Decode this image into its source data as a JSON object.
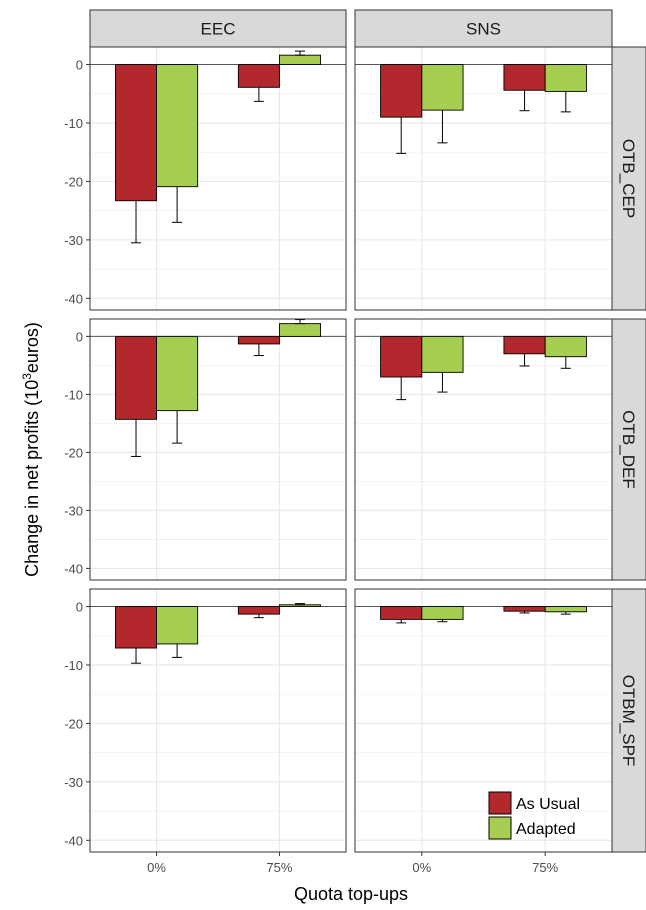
{
  "chart_data": {
    "type": "bar",
    "xlabel": "Quota top-ups",
    "ylabel_prefix": "Change in net profits (10",
    "ylabel_exp": "3",
    "ylabel_suffix": "euros)",
    "categories": [
      "0%",
      "75%"
    ],
    "columns": [
      "EEC",
      "SNS"
    ],
    "rows": [
      "OTB_CEP",
      "OTB_DEF",
      "OTBM_SPF"
    ],
    "ylim": [
      -42,
      3
    ],
    "yticks": [
      0,
      -10,
      -20,
      -30,
      -40
    ],
    "grid": true,
    "legend": {
      "placement": "bottom-right",
      "entries": [
        {
          "name": "As Usual",
          "color": "#B2282C"
        },
        {
          "name": "Adapted",
          "color": "#A6CE50"
        }
      ]
    },
    "panels": [
      {
        "row": "OTB_CEP",
        "col": "EEC",
        "series": [
          {
            "name": "As Usual",
            "values": [
              -23.3,
              -3.9
            ],
            "err_low": [
              -30.5,
              -6.3
            ],
            "err_high": [
              -23.3,
              -3.9
            ]
          },
          {
            "name": "Adapted",
            "values": [
              -20.9,
              1.6
            ],
            "err_low": [
              -27.0,
              1.6
            ],
            "err_high": [
              -20.9,
              2.3
            ]
          }
        ]
      },
      {
        "row": "OTB_CEP",
        "col": "SNS",
        "series": [
          {
            "name": "As Usual",
            "values": [
              -9.0,
              -4.4
            ],
            "err_low": [
              -15.2,
              -7.9
            ],
            "err_high": [
              -9.0,
              -4.4
            ]
          },
          {
            "name": "Adapted",
            "values": [
              -7.8,
              -4.6
            ],
            "err_low": [
              -13.4,
              -8.1
            ],
            "err_high": [
              -7.8,
              -4.6
            ]
          }
        ]
      },
      {
        "row": "OTB_DEF",
        "col": "EEC",
        "series": [
          {
            "name": "As Usual",
            "values": [
              -14.3,
              -1.3
            ],
            "err_low": [
              -20.7,
              -3.3
            ],
            "err_high": [
              -14.3,
              -1.3
            ]
          },
          {
            "name": "Adapted",
            "values": [
              -12.8,
              2.2
            ],
            "err_low": [
              -18.4,
              2.2
            ],
            "err_high": [
              -12.8,
              2.9
            ]
          }
        ]
      },
      {
        "row": "OTB_DEF",
        "col": "SNS",
        "series": [
          {
            "name": "As Usual",
            "values": [
              -7.0,
              -3.0
            ],
            "err_low": [
              -10.9,
              -5.1
            ],
            "err_high": [
              -7.0,
              -3.0
            ]
          },
          {
            "name": "Adapted",
            "values": [
              -6.2,
              -3.5
            ],
            "err_low": [
              -9.6,
              -5.5
            ],
            "err_high": [
              -6.2,
              -3.5
            ]
          }
        ]
      },
      {
        "row": "OTBM_SPF",
        "col": "EEC",
        "series": [
          {
            "name": "As Usual",
            "values": [
              -7.1,
              -1.3
            ],
            "err_low": [
              -9.7,
              -1.9
            ],
            "err_high": [
              -7.1,
              -1.3
            ]
          },
          {
            "name": "Adapted",
            "values": [
              -6.4,
              0.3
            ],
            "err_low": [
              -8.7,
              0.3
            ],
            "err_high": [
              -6.4,
              0.5
            ]
          }
        ]
      },
      {
        "row": "OTBM_SPF",
        "col": "SNS",
        "series": [
          {
            "name": "As Usual",
            "values": [
              -2.2,
              -0.8
            ],
            "err_low": [
              -2.8,
              -1.1
            ],
            "err_high": [
              -2.2,
              -0.8
            ]
          },
          {
            "name": "Adapted",
            "values": [
              -2.2,
              -0.9
            ],
            "err_low": [
              -2.6,
              -1.3
            ],
            "err_high": [
              -2.2,
              -0.9
            ]
          }
        ]
      }
    ]
  }
}
